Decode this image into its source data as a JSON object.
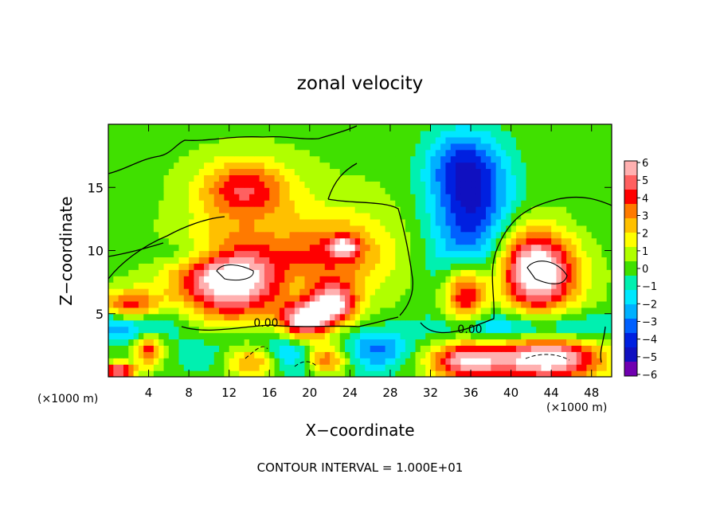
{
  "chart_data": {
    "type": "heatmap",
    "title": "zonal velocity",
    "xlabel": "X−coordinate",
    "ylabel": "Z−coordinate",
    "x_unit_left": "(×1000 m)",
    "x_unit_right": "(×1000 m)",
    "footer": "CONTOUR INTERVAL = 1.000E+01",
    "contour_labels": [
      "0.00",
      "0.00"
    ],
    "x_ticks": [
      4,
      8,
      12,
      16,
      20,
      24,
      28,
      32,
      36,
      40,
      44,
      48
    ],
    "y_ticks": [
      5,
      10,
      15
    ],
    "xlim": [
      0,
      50
    ],
    "ylim": [
      0,
      20
    ],
    "colorbar": {
      "ticks": [
        "6",
        "5",
        "4",
        "3",
        "2",
        "1",
        "0",
        "−1",
        "−2",
        "−3",
        "−4",
        "−5",
        "−6"
      ],
      "range": [
        -6,
        6
      ],
      "colors": [
        "#ffb0b0",
        "#ff6060",
        "#ff0000",
        "#ff7a00",
        "#ffc000",
        "#ffff00",
        "#b0ff00",
        "#40e000",
        "#00f0b0",
        "#00e8ff",
        "#00b0ff",
        "#0060ff",
        "#0020e0",
        "#1010c0",
        "#7000b0"
      ]
    },
    "blobs": [
      {
        "x": 25,
        "z": 11,
        "rx": 30,
        "rz": 11,
        "v": 0.4
      },
      {
        "x": 12,
        "z": 7.8,
        "rx": 5.2,
        "rz": 3.2,
        "v": 7
      },
      {
        "x": 13.5,
        "z": 14.8,
        "rx": 4.5,
        "rz": 2.4,
        "v": 4.2
      },
      {
        "x": 22,
        "z": 9.8,
        "rx": 6,
        "rz": 3.2,
        "v": 3.2
      },
      {
        "x": 23.5,
        "z": 10.3,
        "rx": 1.4,
        "rz": 0.8,
        "v": 4
      },
      {
        "x": 19.5,
        "z": 4.4,
        "rx": 2.5,
        "rz": 1.6,
        "v": 6.5
      },
      {
        "x": 22.5,
        "z": 5.8,
        "rx": 2.2,
        "rz": 1.6,
        "v": 5.5
      },
      {
        "x": 18.5,
        "z": 7.3,
        "rx": 1.8,
        "rz": 1.3,
        "v": -0.8
      },
      {
        "x": 42.5,
        "z": 8.4,
        "rx": 4,
        "rz": 3.3,
        "v": 7.5
      },
      {
        "x": 36,
        "z": 14,
        "rx": 4.2,
        "rz": 4.2,
        "v": -4.5
      },
      {
        "x": 35,
        "z": 17.2,
        "rx": 3.5,
        "rz": 2.5,
        "v": -2.2
      },
      {
        "x": 35.5,
        "z": 6.7,
        "rx": 2.4,
        "rz": 2.6,
        "v": 7.5
      },
      {
        "x": 35.8,
        "z": 7.6,
        "rx": 3.6,
        "rz": 3.6,
        "v": -4
      },
      {
        "x": 2,
        "z": 5.5,
        "rx": 3.2,
        "rz": 1.3,
        "v": 6.5
      },
      {
        "x": 1.5,
        "z": 4.6,
        "rx": 5,
        "rz": 1.6,
        "v": -4.5
      },
      {
        "x": 4,
        "z": 2.2,
        "rx": 1.4,
        "rz": 1.3,
        "v": 4.2
      },
      {
        "x": 9,
        "z": 9.8,
        "rx": 4.5,
        "rz": 1.2,
        "v": -2
      },
      {
        "x": 17,
        "z": 1.8,
        "rx": 7,
        "rz": 1.8,
        "v": -5
      },
      {
        "x": 14.5,
        "z": 1.4,
        "rx": 3.2,
        "rz": 1.5,
        "v": 6.5
      },
      {
        "x": 21.5,
        "z": 1.5,
        "rx": 2.5,
        "rz": 1.3,
        "v": 6
      },
      {
        "x": 27,
        "z": 2.2,
        "rx": 3,
        "rz": 1.6,
        "v": -2.5
      },
      {
        "x": 35.5,
        "z": 1.3,
        "rx": 3.6,
        "rz": 1.5,
        "v": 5.5
      },
      {
        "x": 43.5,
        "z": 1.5,
        "rx": 5.5,
        "rz": 1.8,
        "v": 7
      },
      {
        "x": 42,
        "z": 3.8,
        "rx": 9,
        "rz": 1.3,
        "v": -3
      },
      {
        "x": 1,
        "z": 0.5,
        "rx": 1.6,
        "rz": 0.6,
        "v": 6
      },
      {
        "x": 46,
        "z": 11.5,
        "rx": 4,
        "rz": 3,
        "v": -0.5
      }
    ]
  }
}
